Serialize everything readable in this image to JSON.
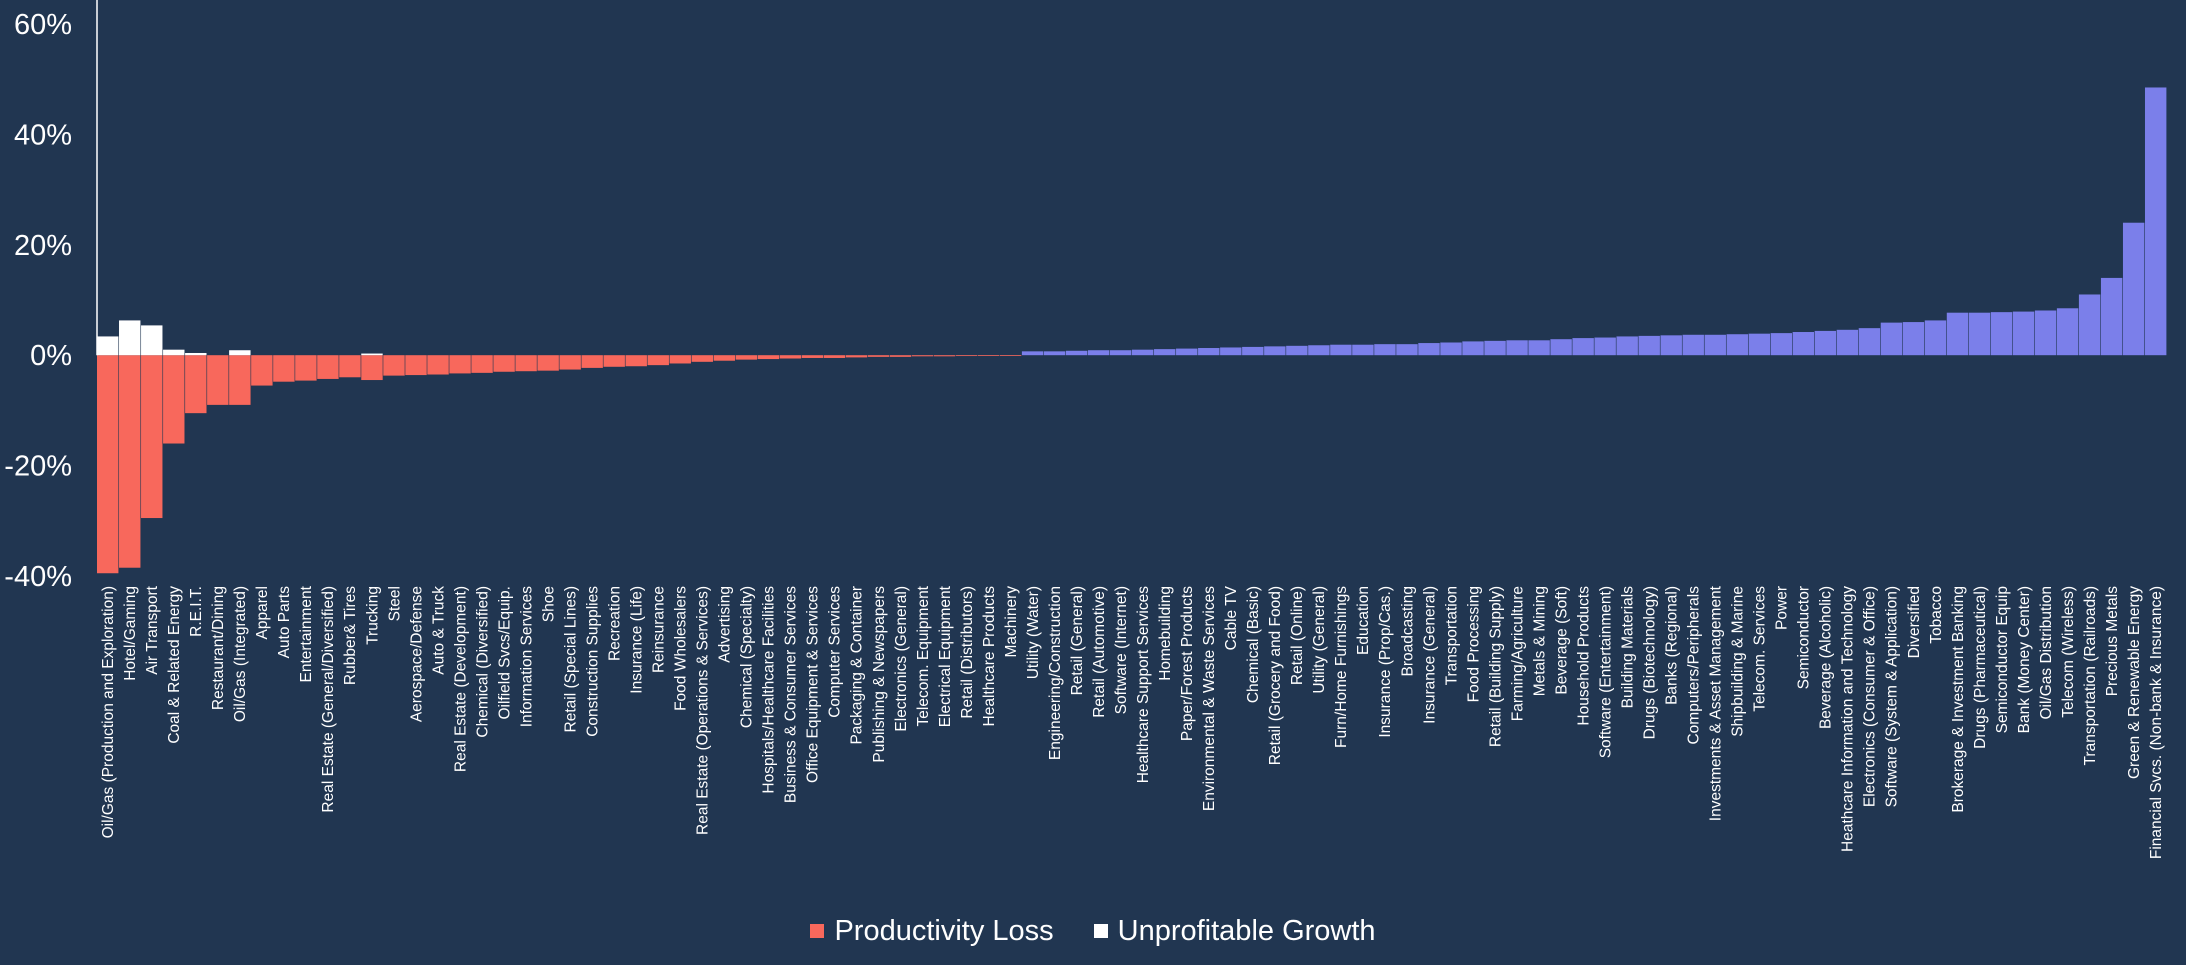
{
  "chart_data": {
    "type": "bar",
    "ylim": [
      -40,
      60
    ],
    "yticks": [
      "60%",
      "40%",
      "20%",
      "0%",
      "-20%",
      "-40%"
    ],
    "grid": false,
    "legend_position": "bottom-center",
    "colors": {
      "productivity_loss": "#F8685C",
      "unprofitable_growth": "#FFFFFF",
      "positive": "#7B7FEA",
      "background": "#213651"
    },
    "legend": [
      {
        "key": "productivity_loss",
        "label": "Productivity Loss"
      },
      {
        "key": "unprofitable_growth",
        "label": "Unprofitable Growth"
      }
    ],
    "categories": [
      "Oil/Gas (Production and Exploration)",
      "Hotel/Gaming",
      "Air Transport",
      "Coal & Related Energy",
      "R.E.I.T.",
      "Restaurant/Dining",
      "Oil/Gas (Integrated)",
      "Apparel",
      "Auto Parts",
      "Entertainment",
      "Real Estate (General/Diversified)",
      "Rubber& Tires",
      "Trucking",
      "Steel",
      "Aerospace/Defense",
      "Auto & Truck",
      "Real Estate (Development)",
      "Chemical (Diversified)",
      "Oilfield Svcs/Equip.",
      "Information Services",
      "Shoe",
      "Retail (Special Lines)",
      "Construction Supplies",
      "Recreation",
      "Insurance (Life)",
      "Reinsurance",
      "Food Wholesalers",
      "Real Estate (Operations & Services)",
      "Advertising",
      "Chemical (Specialty)",
      "Hospitals/Healthcare Facilities",
      "Business & Consumer Services",
      "Office Equipment & Services",
      "Computer Services",
      "Packaging & Container",
      "Publishing & Newspapers",
      "Electronics (General)",
      "Telecom. Equipment",
      "Electrical Equipment",
      "Retail (Distributors)",
      "Healthcare Products",
      "Machinery",
      "Utility (Water)",
      "Engineering/Construction",
      "Retail (General)",
      "Retail (Automotive)",
      "Software (Internet)",
      "Healthcare Support Services",
      "Homebuilding",
      "Paper/Forest Products",
      "Environmental & Waste Services",
      "Cable TV",
      "Chemical (Basic)",
      "Retail (Grocery and Food)",
      "Retail (Online)",
      "Utility (General)",
      "Furn/Home Furnishings",
      "Education",
      "Insurance (Prop/Cas.)",
      "Broadcasting",
      "Insurance (General)",
      "Transportation",
      "Food Processing",
      "Retail (Building Supply)",
      "Farming/Agriculture",
      "Metals & Mining",
      "Beverage (Soft)",
      "Household Products",
      "Software (Entertainment)",
      "Building Materials",
      "Drugs (Biotechnology)",
      "Banks (Regional)",
      "Computers/Peripherals",
      "Investments & Asset Management",
      "Shipbuilding & Marine",
      "Telecom. Services",
      "Power",
      "Semiconductor",
      "Beverage (Alcoholic)",
      "Heathcare Information and Technology",
      "Electronics (Consumer & Office)",
      "Software (System & Application)",
      "Diversified",
      "Tobacco",
      "Brokerage & Investment Banking",
      "Drugs (Pharmaceutical)",
      "Semiconductor Equip",
      "Bank (Money Center)",
      "Oil/Gas Distribution",
      "Telecom (Wireless)",
      "Transportation (Railroads)",
      "Precious Metals",
      "Green & Renewable Energy",
      "Financial Svcs. (Non-bank & Insurance)"
    ],
    "series": [
      {
        "key": "productivity_loss",
        "name": "Productivity Loss",
        "values": [
          -39.5,
          -38.5,
          -29.5,
          -16,
          -10.5,
          -9,
          -9,
          -5.5,
          -4.8,
          -4.6,
          -4.3,
          -4,
          -4.5,
          -3.7,
          -3.6,
          -3.5,
          -3.3,
          -3.2,
          -3,
          -2.9,
          -2.8,
          -2.6,
          -2.3,
          -2.1,
          -2,
          -1.8,
          -1.5,
          -1.2,
          -1,
          -0.8,
          -0.7,
          -0.6,
          -0.5,
          -0.5,
          -0.4,
          -0.3,
          -0.3,
          -0.2,
          -0.2,
          -0.15,
          -0.1,
          -0.05,
          null,
          null,
          null,
          null,
          null,
          null,
          null,
          null,
          null,
          null,
          null,
          null,
          null,
          null,
          null,
          null,
          null,
          null,
          null,
          null,
          null,
          null,
          null,
          null,
          null,
          null,
          null,
          null,
          null,
          null,
          null,
          null,
          null,
          null,
          null,
          null,
          null,
          null,
          null,
          null,
          null,
          null,
          null,
          null,
          null,
          null,
          null,
          null,
          null,
          null,
          null,
          null
        ]
      },
      {
        "key": "unprofitable_growth",
        "name": "Unprofitable Growth",
        "values": [
          3.4,
          6.3,
          5.4,
          1,
          0.4,
          null,
          0.9,
          null,
          null,
          null,
          null,
          null,
          0.3,
          null,
          null,
          null,
          null,
          null,
          null,
          null,
          null,
          null,
          null,
          null,
          null,
          null,
          null,
          null,
          null,
          null,
          null,
          null,
          null,
          null,
          null,
          null,
          null,
          null,
          null,
          null,
          null,
          null,
          null,
          null,
          null,
          null,
          null,
          null,
          null,
          null,
          null,
          null,
          null,
          null,
          null,
          null,
          null,
          null,
          null,
          null,
          null,
          null,
          null,
          null,
          null,
          null,
          null,
          null,
          null,
          null,
          null,
          null,
          null,
          null,
          null,
          null,
          null,
          null,
          null,
          null,
          null,
          null,
          null,
          null,
          null,
          null,
          null,
          null,
          null,
          null,
          null,
          null,
          null,
          null
        ]
      },
      {
        "key": "positive",
        "values": [
          null,
          null,
          null,
          null,
          null,
          null,
          null,
          null,
          null,
          null,
          null,
          null,
          null,
          null,
          null,
          null,
          null,
          null,
          null,
          null,
          null,
          null,
          null,
          null,
          null,
          null,
          null,
          null,
          null,
          null,
          null,
          null,
          null,
          null,
          null,
          null,
          null,
          null,
          null,
          null,
          null,
          null,
          0.7,
          0.7,
          0.8,
          0.9,
          0.9,
          1,
          1.1,
          1.2,
          1.3,
          1.4,
          1.5,
          1.6,
          1.7,
          1.8,
          1.9,
          1.9,
          2,
          2,
          2.2,
          2.3,
          2.5,
          2.6,
          2.7,
          2.7,
          2.9,
          3.1,
          3.2,
          3.4,
          3.5,
          3.6,
          3.7,
          3.7,
          3.8,
          3.9,
          4,
          4.2,
          4.4,
          4.6,
          4.9,
          5.9,
          6,
          6.3,
          7.7,
          7.7,
          7.8,
          7.9,
          8.1,
          8.5,
          11,
          14,
          24,
          48.5
        ]
      }
    ]
  }
}
